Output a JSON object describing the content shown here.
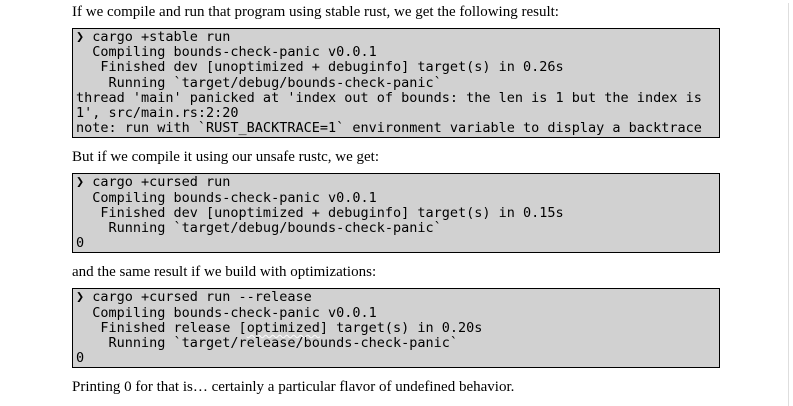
{
  "page": {
    "colors": {
      "code_block_bg": "#d1d1d1",
      "code_block_border": "#000000",
      "text": "#000000"
    },
    "paragraphs": {
      "intro": "If we compile and run that program using stable rust, we get the following result:",
      "unsafe_rustc": "But if we compile it using our unsafe rustc, we get:",
      "optimizations": "and the same result if we build with optimizations:",
      "conclusion": "Printing 0 for that is… certainly a particular flavor of undefined behavior."
    },
    "terminals": [
      {
        "name": "stable-run",
        "prompt_symbol": "❯",
        "text": "❯ cargo +stable run\n  Compiling bounds-check-panic v0.0.1\n   Finished dev [unoptimized + debuginfo] target(s) in 0.26s\n    Running `target/debug/bounds-check-panic`\nthread 'main' panicked at 'index out of bounds: the len is 1 but the index is\n1', src/main.rs:2:20\nnote: run with `RUST_BACKTRACE=1` environment variable to display a backtrace"
      },
      {
        "name": "cursed-run",
        "prompt_symbol": "❯",
        "text": "❯ cargo +cursed run\n  Compiling bounds-check-panic v0.0.1\n   Finished dev [unoptimized + debuginfo] target(s) in 0.15s\n    Running `target/debug/bounds-check-panic`\n0"
      },
      {
        "name": "cursed-run-release",
        "prompt_symbol": "❯",
        "text_before_squiggle": "❯ cargo +cursed run --release\n  Compiling bounds-check-panic v0.0.1\n   Finished release [",
        "squiggle_word": "optimized",
        "text_after_squiggle": "] target(s) in 0.20s\n    Running `target/release/bounds-check-panic`\n0"
      }
    ]
  }
}
